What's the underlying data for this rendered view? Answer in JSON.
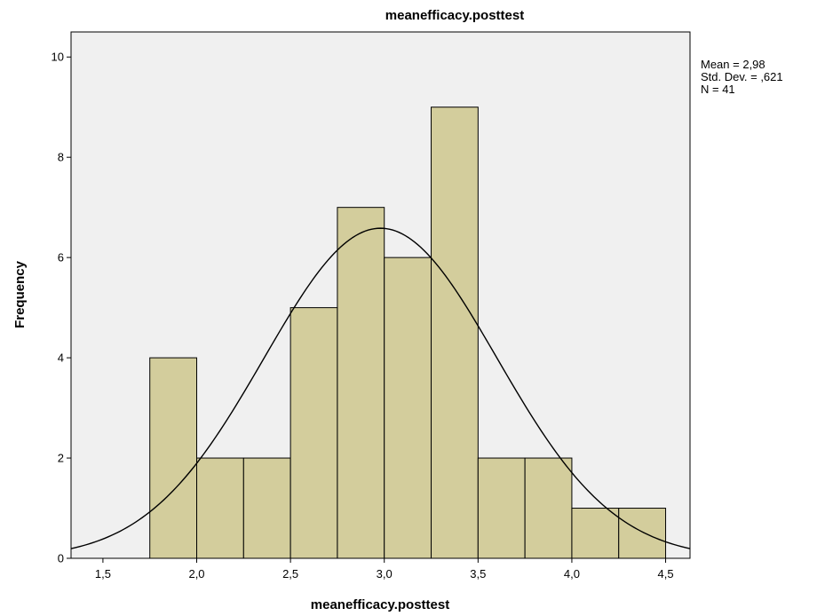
{
  "chart_data": {
    "type": "bar",
    "title": "meanefficacy.posttest",
    "xlabel": "meanefficacy.posttest",
    "ylabel": "Frequency",
    "xlim": [
      1.33,
      4.63
    ],
    "ylim": [
      0,
      10.5
    ],
    "x_ticks": [
      "1,5",
      "2,0",
      "2,5",
      "3,0",
      "3,5",
      "4,0",
      "4,5"
    ],
    "x_tick_values": [
      1.5,
      2.0,
      2.5,
      3.0,
      3.5,
      4.0,
      4.5
    ],
    "y_ticks": [
      "0",
      "2",
      "4",
      "6",
      "8",
      "10"
    ],
    "y_tick_values": [
      0,
      2,
      4,
      6,
      8,
      10
    ],
    "bin_width": 0.25,
    "bins": [
      {
        "x0": 1.75,
        "x1": 2.0,
        "count": 4
      },
      {
        "x0": 2.0,
        "x1": 2.25,
        "count": 2
      },
      {
        "x0": 2.25,
        "x1": 2.5,
        "count": 2
      },
      {
        "x0": 2.5,
        "x1": 2.75,
        "count": 5
      },
      {
        "x0": 2.75,
        "x1": 3.0,
        "count": 7
      },
      {
        "x0": 3.0,
        "x1": 3.25,
        "count": 6
      },
      {
        "x0": 3.25,
        "x1": 3.5,
        "count": 9
      },
      {
        "x0": 3.5,
        "x1": 3.75,
        "count": 2
      },
      {
        "x0": 3.75,
        "x1": 4.0,
        "count": 2
      },
      {
        "x0": 4.0,
        "x1": 4.25,
        "count": 1
      },
      {
        "x0": 4.25,
        "x1": 4.5,
        "count": 1
      }
    ],
    "normal_curve": {
      "mean": 2.98,
      "sd": 0.621,
      "n": 41
    },
    "stats": {
      "mean": "Mean = 2,98",
      "sd": "Std. Dev. = ,621",
      "n": "N = 41"
    },
    "colors": {
      "bar_fill": "#d3cd9c",
      "bar_stroke": "#000000",
      "plot_background": "#f0f0f0",
      "curve": "#000000"
    },
    "grid": false
  }
}
